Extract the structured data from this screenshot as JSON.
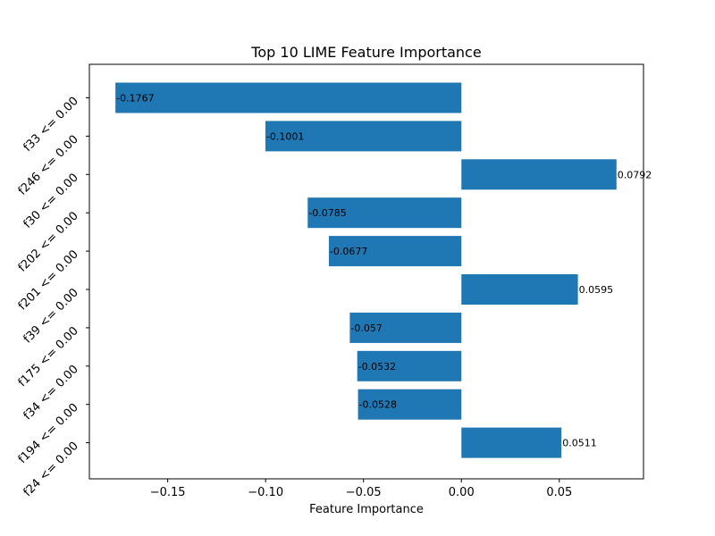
{
  "chart_data": {
    "type": "bar",
    "orientation": "horizontal",
    "title": "Top 10 LIME Feature Importance",
    "xlabel": "Feature Importance",
    "ylabel": "",
    "categories": [
      "f33 <= 0.00",
      "f246 <= 0.00",
      "f30 <= 0.00",
      "f202 <= 0.00",
      "f201 <= 0.00",
      "f39 <= 0.00",
      "f175 <= 0.00",
      "f34 <= 0.00",
      "f194 <= 0.00",
      "f24 <= 0.00"
    ],
    "values": [
      -0.1767,
      -0.1001,
      0.0792,
      -0.0785,
      -0.0677,
      0.0595,
      -0.057,
      -0.0532,
      -0.0528,
      0.0511
    ],
    "value_labels": [
      "-0.1767",
      "-0.1001",
      "0.0792",
      "-0.0785",
      "-0.0677",
      "0.0595",
      "-0.057",
      "-0.0532",
      "-0.0528",
      "0.0511"
    ],
    "xlim": [
      -0.19,
      0.093
    ],
    "xticks": [
      -0.15,
      -0.1,
      -0.05,
      0.0,
      0.05
    ],
    "xtick_labels": [
      "−0.15",
      "−0.10",
      "−0.05",
      "0.00",
      "0.05"
    ],
    "grid": false,
    "bar_color": "#1f77b4"
  }
}
